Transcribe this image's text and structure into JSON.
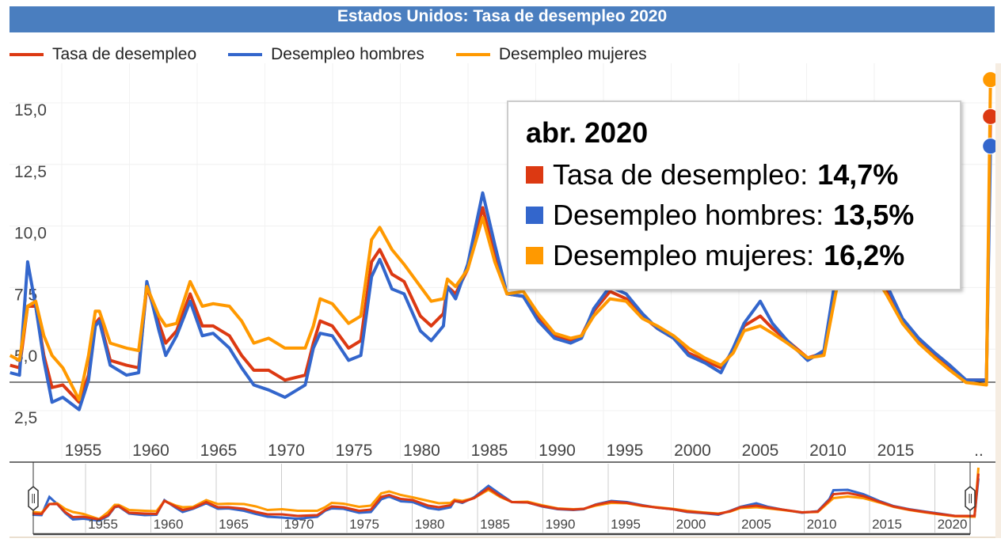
{
  "title": "Estados Unidos: Tasa de desempleo 2020",
  "colors": {
    "title_bg": "#4a7ebf",
    "total": "#dc3912",
    "men": "#3366cc",
    "women": "#ff9900"
  },
  "tooltip": {
    "date": "abr. 2020",
    "rows": [
      {
        "label": "Tasa de desempleo:",
        "value": "14,7%",
        "color": "#dc3912"
      },
      {
        "label": "Desempleo hombres:",
        "value": "13,5%",
        "color": "#3366cc"
      },
      {
        "label": "Desempleo mujeres:",
        "value": "16,2%",
        "color": "#ff9900"
      }
    ]
  },
  "chart_data": {
    "type": "line",
    "title": "Estados Unidos: Tasa de desempleo 2020",
    "legend_position": "top-left",
    "grid": true,
    "ylim": [
      2.0,
      16.0
    ],
    "y_ticks": [
      "2,5",
      "5,0",
      "7,5",
      "10,0",
      "12,5",
      "15,0"
    ],
    "y_tick_values": [
      2.5,
      5.0,
      7.5,
      10.0,
      12.5,
      15.0
    ],
    "x_ticks": [
      "1955",
      "1960",
      "1965",
      "1970",
      "1975",
      "1980",
      "1985",
      "1990",
      "1995",
      "2000",
      "2005",
      "2010",
      "2015",
      ".."
    ],
    "x_tick_values": [
      1955,
      1960,
      1965,
      1970,
      1975,
      1980,
      1985,
      1990,
      1995,
      2000,
      2005,
      2010,
      2015,
      2022
    ],
    "navigator_ticks": [
      "1955",
      "1960",
      "1965",
      "1970",
      "1975",
      "1980",
      "1985",
      "1990",
      "1995",
      "2000",
      "2005",
      "2010",
      "2015",
      "2020"
    ],
    "x": [
      1949.6,
      1950.3,
      1950.9,
      1951.5,
      1952.1,
      1952.7,
      1953.5,
      1954.7,
      1955.4,
      1955.9,
      1956.2,
      1957.0,
      1958.2,
      1959.1,
      1959.7,
      1960.6,
      1961.1,
      1961.9,
      1962.9,
      1963.8,
      1964.6,
      1965.8,
      1966.7,
      1967.6,
      1968.7,
      1969.9,
      1971.4,
      1972.0,
      1972.5,
      1973.4,
      1974.6,
      1975.5,
      1976.3,
      1976.9,
      1977.8,
      1978.7,
      1979.9,
      1980.7,
      1981.6,
      1981.9,
      1982.5,
      1983.4,
      1984.5,
      1985.4,
      1986.3,
      1987.5,
      1988.6,
      1989.8,
      1991.0,
      1991.8,
      1992.7,
      1993.9,
      1995.1,
      1996.3,
      1997.4,
      1998.6,
      1999.7,
      2000.9,
      2002.1,
      2003.0,
      2003.8,
      2005.0,
      2005.9,
      2007.0,
      2008.5,
      2009.7,
      2010.6,
      2010.9,
      2012.0,
      2013.2,
      2014.4,
      2015.5,
      2016.7,
      2017.9,
      2019.0,
      2020.2,
      2021.7,
      2022.0
    ],
    "series": [
      {
        "name": "Tasa de desempleo",
        "color": "#dc3912",
        "values": [
          4.6,
          4.5,
          7.0,
          7.0,
          5.0,
          3.7,
          3.8,
          3.1,
          4.2,
          6.3,
          6.5,
          4.8,
          4.6,
          4.5,
          7.8,
          6.3,
          5.5,
          6.0,
          7.5,
          6.2,
          6.2,
          5.8,
          5.0,
          4.4,
          4.4,
          4.0,
          4.2,
          5.5,
          6.4,
          6.2,
          5.3,
          5.6,
          8.8,
          9.3,
          8.3,
          8.0,
          6.6,
          6.2,
          6.7,
          7.8,
          7.5,
          8.5,
          11.0,
          9.0,
          7.5,
          7.4,
          6.5,
          5.8,
          5.6,
          5.8,
          6.8,
          7.6,
          7.3,
          6.6,
          6.1,
          5.7,
          5.1,
          4.8,
          4.5,
          5.2,
          6.2,
          6.6,
          6.1,
          5.6,
          4.9,
          5.1,
          8.0,
          9.5,
          9.8,
          9.0,
          7.6,
          6.4,
          5.6,
          5.0,
          4.5,
          4.0,
          4.0,
          14.7
        ]
      },
      {
        "name": "Desempleo hombres",
        "color": "#3366cc",
        "values": [
          4.3,
          4.2,
          8.8,
          7.0,
          4.8,
          3.1,
          3.3,
          2.8,
          4.0,
          6.2,
          6.4,
          4.6,
          4.2,
          4.3,
          8.0,
          6.0,
          5.0,
          5.8,
          7.2,
          5.8,
          5.9,
          5.3,
          4.5,
          3.8,
          3.6,
          3.3,
          3.8,
          5.3,
          5.9,
          5.8,
          4.8,
          5.0,
          8.2,
          8.9,
          7.7,
          7.5,
          6.0,
          5.6,
          6.2,
          7.8,
          7.3,
          8.7,
          11.6,
          9.5,
          7.5,
          7.4,
          6.4,
          5.7,
          5.5,
          5.7,
          6.9,
          7.8,
          7.5,
          6.7,
          6.1,
          5.7,
          5.0,
          4.7,
          4.3,
          5.3,
          6.3,
          7.2,
          6.3,
          5.6,
          4.8,
          5.2,
          8.3,
          10.5,
          10.6,
          9.5,
          7.8,
          6.5,
          5.7,
          5.1,
          4.6,
          4.0,
          4.0,
          13.5
        ]
      },
      {
        "name": "Desempleo mujeres",
        "color": "#ff9900",
        "values": [
          5.0,
          4.8,
          7.0,
          7.2,
          5.8,
          5.0,
          4.5,
          3.2,
          5.0,
          6.8,
          6.8,
          5.5,
          5.3,
          5.2,
          7.8,
          6.6,
          6.2,
          6.3,
          8.0,
          7.0,
          7.1,
          7.0,
          6.4,
          5.5,
          5.7,
          5.3,
          5.3,
          6.2,
          7.3,
          7.1,
          6.3,
          6.6,
          9.7,
          10.2,
          9.3,
          8.7,
          7.8,
          7.2,
          7.3,
          8.1,
          7.8,
          8.5,
          10.6,
          8.8,
          7.5,
          7.6,
          6.7,
          5.9,
          5.7,
          5.8,
          6.6,
          7.3,
          7.2,
          6.5,
          6.2,
          5.8,
          5.3,
          4.9,
          4.6,
          5.1,
          6.0,
          6.2,
          5.9,
          5.5,
          4.9,
          5.0,
          7.6,
          8.5,
          8.9,
          8.5,
          7.4,
          6.3,
          5.5,
          4.9,
          4.4,
          3.9,
          3.8,
          16.2
        ]
      }
    ]
  }
}
